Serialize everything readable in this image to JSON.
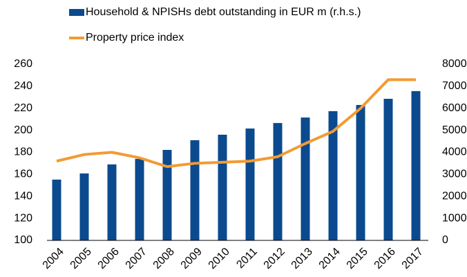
{
  "chart_data": {
    "type": "bar-line",
    "categories": [
      "2004",
      "2005",
      "2006",
      "2007",
      "2008",
      "2009",
      "2010",
      "2011",
      "2012",
      "2013",
      "2014",
      "2015",
      "2016",
      "2017"
    ],
    "series": [
      {
        "name": "Household & NPISHs debt outstanding in EUR m (r.h.s.)",
        "type": "bar",
        "axis": "y2",
        "color": "#0b4a8e",
        "values": [
          2760,
          3040,
          3450,
          3700,
          4110,
          4550,
          4800,
          5080,
          5330,
          5580,
          5870,
          6150,
          6430,
          6780
        ]
      },
      {
        "name": "Property price index",
        "type": "line",
        "color": "#f39a33",
        "values": [
          172,
          178,
          180,
          175,
          167,
          170,
          171,
          172,
          176,
          188,
          199,
          220,
          246,
          246
        ]
      }
    ],
    "ylim": [
      100,
      260
    ],
    "yticks": [
      100,
      120,
      140,
      160,
      180,
      200,
      220,
      240,
      260
    ],
    "y2lim": [
      0,
      8000
    ],
    "y2ticks": [
      0,
      1000,
      2000,
      3000,
      4000,
      5000,
      6000,
      7000,
      8000
    ],
    "grid": false
  }
}
